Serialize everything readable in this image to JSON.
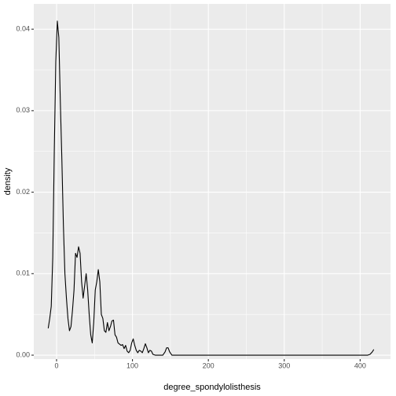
{
  "chart_data": {
    "type": "line",
    "x_label": "degree_spondylolisthesis",
    "y_label": "density",
    "x": [
      -11,
      -9,
      -7,
      -5,
      -3,
      -1,
      1,
      3,
      5,
      7,
      9,
      11,
      13,
      15,
      17,
      19,
      21,
      23,
      25,
      27,
      29,
      31,
      33,
      35,
      37,
      39,
      41,
      43,
      45,
      47,
      49,
      51,
      53,
      55,
      57,
      59,
      61,
      63,
      65,
      67,
      69,
      71,
      73,
      75,
      77,
      79,
      81,
      85,
      87,
      89,
      91,
      93,
      95,
      97,
      99,
      101,
      103,
      105,
      107,
      109,
      111,
      113,
      115,
      117,
      119,
      121,
      123,
      125,
      127,
      130,
      140,
      143,
      145,
      147,
      149,
      152,
      400,
      410,
      413,
      416,
      418
    ],
    "values": [
      0.0033,
      0.0045,
      0.006,
      0.012,
      0.025,
      0.036,
      0.041,
      0.039,
      0.031,
      0.024,
      0.016,
      0.01,
      0.007,
      0.0045,
      0.003,
      0.0035,
      0.0055,
      0.008,
      0.0125,
      0.012,
      0.0133,
      0.0125,
      0.009,
      0.007,
      0.0085,
      0.01,
      0.008,
      0.005,
      0.0025,
      0.0015,
      0.004,
      0.008,
      0.009,
      0.0105,
      0.009,
      0.005,
      0.0045,
      0.003,
      0.0028,
      0.004,
      0.003,
      0.0035,
      0.0042,
      0.0043,
      0.0025,
      0.0022,
      0.0015,
      0.0012,
      0.0013,
      0.0008,
      0.0012,
      0.0005,
      0.0003,
      0.0006,
      0.0015,
      0.002,
      0.0012,
      0.0006,
      0.0003,
      0.0006,
      0.0005,
      0.0003,
      0.0008,
      0.0014,
      0.0009,
      0.0003,
      0.0006,
      0.0005,
      0.0001,
      0,
      0,
      0.0004,
      0.0009,
      0.0009,
      0.0004,
      0,
      0,
      0,
      0.0001,
      0.0004,
      0.0007
    ],
    "color": "#000000",
    "xlim": [
      -30,
      440
    ],
    "ylim": [
      -0.00048,
      0.0431
    ],
    "xticks": [
      0,
      100,
      200,
      300,
      400
    ],
    "yticks": [
      {
        "value": 0,
        "label": "0.00"
      },
      {
        "value": 0.01,
        "label": "0.01"
      },
      {
        "value": 0.02,
        "label": "0.02"
      },
      {
        "value": 0.03,
        "label": "0.03"
      },
      {
        "value": 0.04,
        "label": "0.04"
      }
    ],
    "x_minor_grid": [
      50,
      150,
      250,
      350
    ],
    "y_minor_grid": [
      0.005,
      0.015,
      0.025,
      0.035
    ],
    "grid": true
  }
}
